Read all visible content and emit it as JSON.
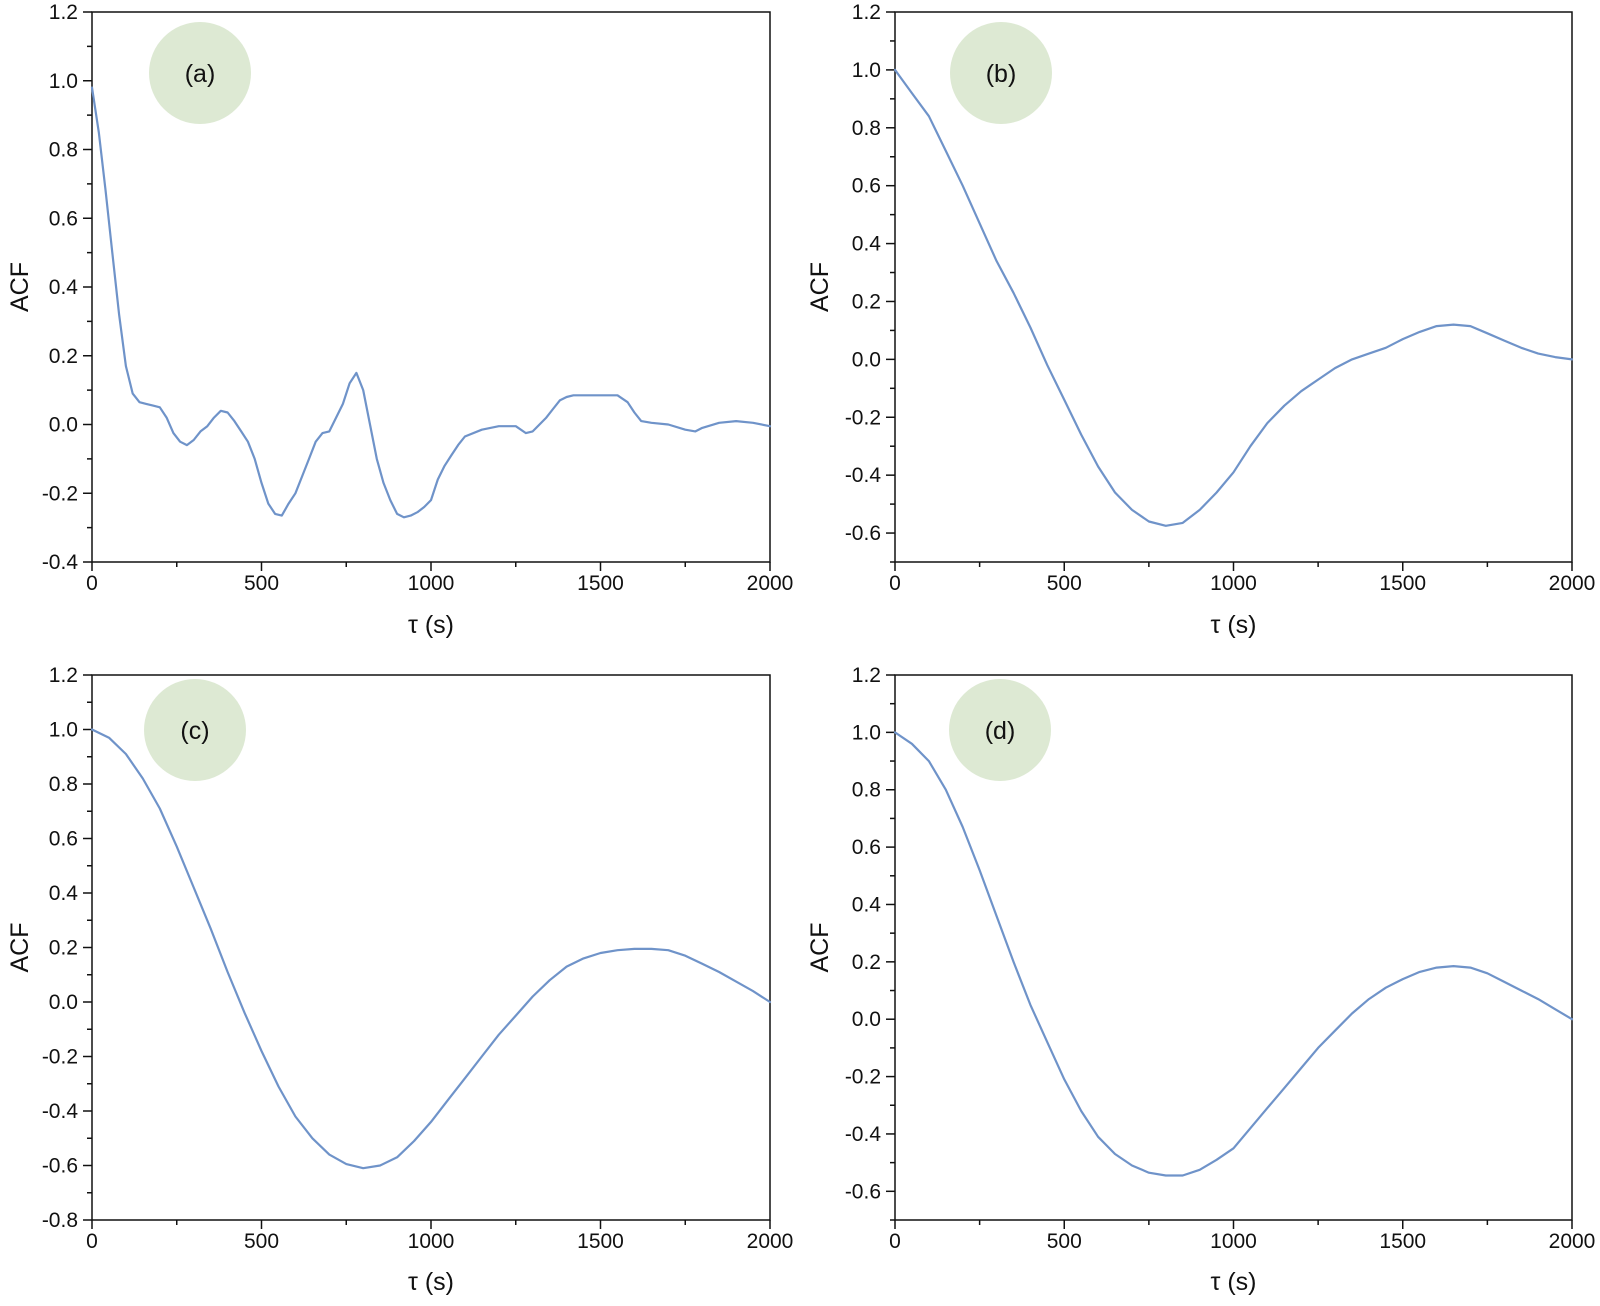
{
  "colors": {
    "line": "#6f93c9",
    "badge": "#dde9d3",
    "axis": "#111111"
  },
  "chart_data": [
    {
      "type": "line",
      "panel_label": "(a)",
      "xlabel": "τ (s)",
      "ylabel": "ACF",
      "xlim": [
        0,
        2000
      ],
      "ylim": [
        -0.4,
        1.2
      ],
      "xticks": [
        0,
        500,
        1000,
        1500,
        2000
      ],
      "yticks": [
        -0.4,
        -0.2,
        0.0,
        0.2,
        0.4,
        0.6,
        0.8,
        1.0,
        1.2
      ],
      "xtick_labels": [
        "0",
        "500",
        "1000",
        "1500",
        "2000"
      ],
      "ytick_labels": [
        "-0.4",
        "-0.2",
        "0.0",
        "0.2",
        "0.4",
        "0.6",
        "0.8",
        "1.0",
        "1.2"
      ],
      "grid": false,
      "x": [
        0,
        20,
        40,
        60,
        80,
        100,
        120,
        140,
        160,
        180,
        200,
        220,
        240,
        260,
        280,
        300,
        320,
        340,
        360,
        380,
        400,
        420,
        440,
        460,
        480,
        500,
        520,
        540,
        560,
        580,
        600,
        620,
        640,
        660,
        680,
        700,
        720,
        740,
        760,
        780,
        800,
        820,
        840,
        860,
        880,
        900,
        920,
        940,
        960,
        980,
        1000,
        1020,
        1040,
        1060,
        1080,
        1100,
        1150,
        1200,
        1250,
        1280,
        1300,
        1320,
        1340,
        1360,
        1380,
        1400,
        1420,
        1450,
        1500,
        1550,
        1580,
        1600,
        1620,
        1650,
        1700,
        1750,
        1780,
        1800,
        1850,
        1900,
        1950,
        2000
      ],
      "values": [
        0.98,
        0.85,
        0.68,
        0.5,
        0.32,
        0.17,
        0.09,
        0.065,
        0.06,
        0.055,
        0.05,
        0.02,
        -0.025,
        -0.05,
        -0.06,
        -0.045,
        -0.02,
        -0.005,
        0.02,
        0.04,
        0.035,
        0.01,
        -0.02,
        -0.05,
        -0.1,
        -0.17,
        -0.23,
        -0.26,
        -0.265,
        -0.23,
        -0.2,
        -0.15,
        -0.1,
        -0.05,
        -0.025,
        -0.02,
        0.02,
        0.06,
        0.12,
        0.15,
        0.1,
        0.0,
        -0.1,
        -0.17,
        -0.22,
        -0.26,
        -0.27,
        -0.265,
        -0.255,
        -0.24,
        -0.22,
        -0.16,
        -0.12,
        -0.09,
        -0.06,
        -0.035,
        -0.015,
        -0.005,
        -0.005,
        -0.025,
        -0.02,
        0.0,
        0.02,
        0.045,
        0.07,
        0.08,
        0.085,
        0.085,
        0.085,
        0.085,
        0.065,
        0.035,
        0.01,
        0.005,
        0.0,
        -0.015,
        -0.02,
        -0.01,
        0.005,
        0.01,
        0.005,
        -0.005
      ]
    },
    {
      "type": "line",
      "panel_label": "(b)",
      "xlabel": "τ (s)",
      "ylabel": "ACF",
      "xlim": [
        0,
        2000
      ],
      "ylim": [
        -0.7,
        1.2
      ],
      "xticks": [
        0,
        500,
        1000,
        1500,
        2000
      ],
      "yticks": [
        -0.6,
        -0.4,
        -0.2,
        0.0,
        0.2,
        0.4,
        0.6,
        0.8,
        1.0,
        1.2
      ],
      "xtick_labels": [
        "0",
        "500",
        "1000",
        "1500",
        "2000"
      ],
      "ytick_labels": [
        "-0.6",
        "-0.4",
        "-0.2",
        "0.0",
        "0.2",
        "0.4",
        "0.6",
        "0.8",
        "1.0",
        "1.2"
      ],
      "grid": false,
      "x": [
        0,
        50,
        100,
        150,
        200,
        250,
        300,
        350,
        400,
        450,
        500,
        550,
        600,
        650,
        700,
        750,
        800,
        850,
        900,
        950,
        1000,
        1050,
        1100,
        1150,
        1200,
        1250,
        1300,
        1350,
        1400,
        1450,
        1500,
        1550,
        1600,
        1650,
        1700,
        1750,
        1800,
        1850,
        1900,
        1950,
        2000
      ],
      "values": [
        1.0,
        0.92,
        0.84,
        0.72,
        0.6,
        0.47,
        0.34,
        0.23,
        0.11,
        -0.02,
        -0.14,
        -0.26,
        -0.37,
        -0.46,
        -0.52,
        -0.56,
        -0.575,
        -0.565,
        -0.52,
        -0.46,
        -0.39,
        -0.3,
        -0.22,
        -0.16,
        -0.11,
        -0.07,
        -0.03,
        0.0,
        0.02,
        0.04,
        0.07,
        0.095,
        0.115,
        0.12,
        0.115,
        0.09,
        0.065,
        0.04,
        0.02,
        0.008,
        0.0
      ]
    },
    {
      "type": "line",
      "panel_label": "(c)",
      "xlabel": "τ (s)",
      "ylabel": "ACF",
      "xlim": [
        0,
        2000
      ],
      "ylim": [
        -0.8,
        1.2
      ],
      "xticks": [
        0,
        500,
        1000,
        1500,
        2000
      ],
      "yticks": [
        -0.8,
        -0.6,
        -0.4,
        -0.2,
        0.0,
        0.2,
        0.4,
        0.6,
        0.8,
        1.0,
        1.2
      ],
      "xtick_labels": [
        "0",
        "500",
        "1000",
        "1500",
        "2000"
      ],
      "ytick_labels": [
        "-0.8",
        "-0.6",
        "-0.4",
        "-0.2",
        "0.0",
        "0.2",
        "0.4",
        "0.6",
        "0.8",
        "1.0",
        "1.2"
      ],
      "grid": false,
      "x": [
        0,
        50,
        100,
        150,
        200,
        250,
        300,
        350,
        400,
        450,
        500,
        550,
        600,
        650,
        700,
        750,
        800,
        850,
        900,
        950,
        1000,
        1050,
        1100,
        1150,
        1200,
        1250,
        1300,
        1350,
        1400,
        1450,
        1500,
        1550,
        1600,
        1650,
        1700,
        1750,
        1800,
        1850,
        1900,
        1950,
        2000
      ],
      "values": [
        1.0,
        0.97,
        0.91,
        0.82,
        0.71,
        0.57,
        0.42,
        0.27,
        0.11,
        -0.04,
        -0.18,
        -0.31,
        -0.42,
        -0.5,
        -0.56,
        -0.595,
        -0.61,
        -0.6,
        -0.57,
        -0.51,
        -0.44,
        -0.36,
        -0.28,
        -0.2,
        -0.12,
        -0.05,
        0.02,
        0.08,
        0.13,
        0.16,
        0.18,
        0.19,
        0.195,
        0.195,
        0.19,
        0.17,
        0.14,
        0.11,
        0.075,
        0.04,
        0.0
      ]
    },
    {
      "type": "line",
      "panel_label": "(d)",
      "xlabel": "τ (s)",
      "ylabel": "ACF",
      "xlim": [
        0,
        2000
      ],
      "ylim": [
        -0.7,
        1.2
      ],
      "xticks": [
        0,
        500,
        1000,
        1500,
        2000
      ],
      "yticks": [
        -0.6,
        -0.4,
        -0.2,
        0.0,
        0.2,
        0.4,
        0.6,
        0.8,
        1.0,
        1.2
      ],
      "xtick_labels": [
        "0",
        "500",
        "1000",
        "1500",
        "2000"
      ],
      "ytick_labels": [
        "-0.6",
        "-0.4",
        "-0.2",
        "0.0",
        "0.2",
        "0.4",
        "0.6",
        "0.8",
        "1.0",
        "1.2"
      ],
      "grid": false,
      "x": [
        0,
        50,
        100,
        150,
        200,
        250,
        300,
        350,
        400,
        450,
        500,
        550,
        600,
        650,
        700,
        750,
        800,
        850,
        900,
        950,
        1000,
        1050,
        1100,
        1150,
        1200,
        1250,
        1300,
        1350,
        1400,
        1450,
        1500,
        1550,
        1600,
        1650,
        1700,
        1750,
        1800,
        1850,
        1900,
        1950,
        2000
      ],
      "values": [
        1.0,
        0.96,
        0.9,
        0.8,
        0.67,
        0.52,
        0.36,
        0.2,
        0.05,
        -0.08,
        -0.21,
        -0.32,
        -0.41,
        -0.47,
        -0.51,
        -0.535,
        -0.545,
        -0.545,
        -0.525,
        -0.49,
        -0.45,
        -0.38,
        -0.31,
        -0.24,
        -0.17,
        -0.1,
        -0.04,
        0.02,
        0.07,
        0.11,
        0.14,
        0.165,
        0.18,
        0.185,
        0.18,
        0.16,
        0.13,
        0.1,
        0.07,
        0.035,
        0.0
      ]
    }
  ]
}
